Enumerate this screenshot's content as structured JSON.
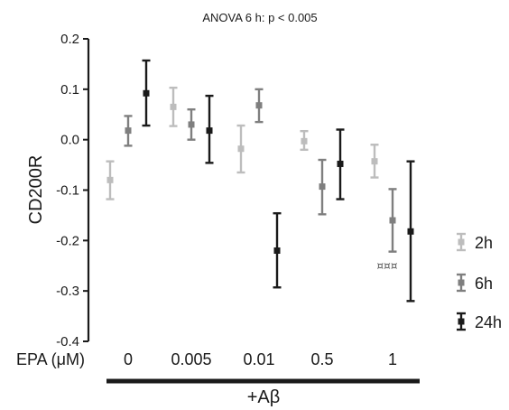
{
  "chart_data": {
    "type": "scatter",
    "title": "ANOVA 6 h: p < 0.005",
    "ylabel": "CD200R",
    "xlabel": "EPA (μM)",
    "treatment_label": "+Aβ",
    "categories": [
      "0",
      "0.005",
      "0.01",
      "0.5",
      "1"
    ],
    "ylim": [
      -0.4,
      0.2
    ],
    "yticks": [
      0.2,
      0.1,
      0.0,
      -0.1,
      -0.2,
      -0.3,
      -0.4
    ],
    "ytick_labels": [
      "0.2",
      "0.1",
      "0.0",
      "-0.1",
      "-0.2",
      "-0.3",
      "-0.4"
    ],
    "series": [
      {
        "name": "2h",
        "color": "#bdbdbd",
        "values": [
          -0.08,
          0.065,
          -0.018,
          -0.003,
          -0.043
        ],
        "err_low": [
          -0.118,
          0.027,
          -0.065,
          -0.02,
          -0.075
        ],
        "err_high": [
          -0.043,
          0.103,
          0.028,
          0.017,
          -0.01
        ]
      },
      {
        "name": "6h",
        "color": "#7f7f7f",
        "values": [
          0.018,
          0.03,
          0.068,
          -0.093,
          -0.16
        ],
        "err_low": [
          -0.012,
          0.0,
          0.035,
          -0.148,
          -0.222
        ],
        "err_high": [
          0.047,
          0.06,
          0.1,
          -0.04,
          -0.098
        ]
      },
      {
        "name": "24h",
        "color": "#1a1a1a",
        "values": [
          0.092,
          0.018,
          -0.22,
          -0.048,
          -0.182
        ],
        "err_low": [
          0.028,
          -0.046,
          -0.293,
          -0.118,
          -0.32
        ],
        "err_high": [
          0.157,
          0.087,
          -0.146,
          0.02,
          -0.043
        ]
      }
    ],
    "annotations": [
      {
        "text": "¤¤¤",
        "category": "1",
        "y": -0.25
      }
    ],
    "legend_position": "right",
    "grid": false
  }
}
